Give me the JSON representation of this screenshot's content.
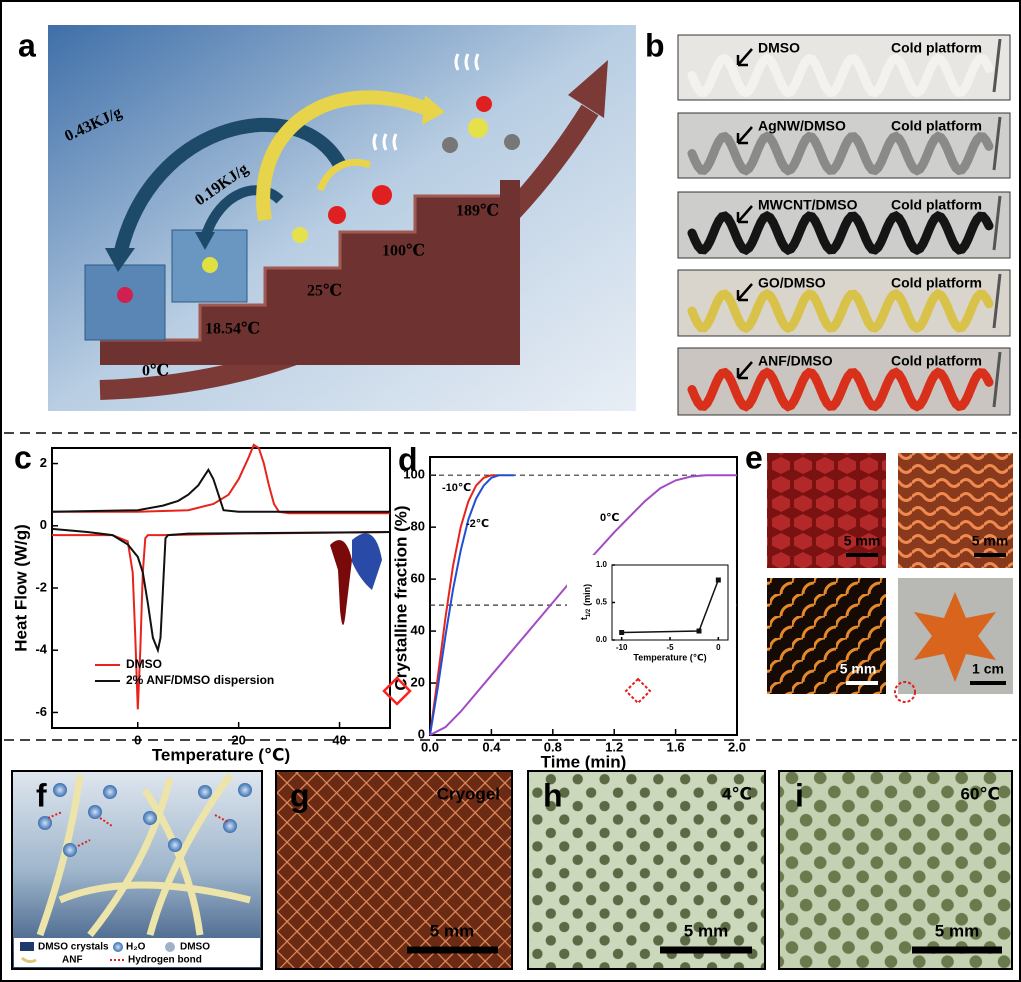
{
  "panel_labels": [
    "a",
    "b",
    "c",
    "d",
    "e",
    "f",
    "g",
    "h",
    "i"
  ],
  "panel_a": {
    "energies": [
      "0.43KJ/g",
      "0.19KJ/g"
    ],
    "temperatures": [
      "0℃",
      "18.54℃",
      "25℃",
      "100℃",
      "189℃"
    ]
  },
  "panel_b": {
    "strips": [
      {
        "label": "DMSO",
        "platform": "Cold platform"
      },
      {
        "label": "AgNW/DMSO",
        "platform": "Cold platform"
      },
      {
        "label": "MWCNT/DMSO",
        "platform": "Cold platform"
      },
      {
        "label": "GO/DMSO",
        "platform": "Cold platform"
      },
      {
        "label": "ANF/DMSO",
        "platform": "Cold platform"
      }
    ]
  },
  "chart_data": [
    {
      "type": "line",
      "xlabel": "Temperature (℃)",
      "ylabel": "Heat Flow (W/g)",
      "xlim": [
        -17,
        50
      ],
      "ylim": [
        -6.5,
        2.5
      ],
      "xticks": [
        0,
        20,
        40
      ],
      "yticks": [
        2,
        0,
        -2,
        -4,
        -6
      ],
      "legend": "lower left",
      "series": [
        {
          "name": "DMSO",
          "color": "#e8231c",
          "x": [
            -17,
            0,
            10,
            15,
            18,
            20,
            22,
            23,
            24,
            25,
            26,
            27,
            28,
            30,
            40,
            50,
            null,
            -17,
            -5,
            -2,
            -1,
            -0.5,
            0,
            0.5,
            1,
            1.5,
            2,
            5,
            20,
            50
          ],
          "values": [
            0.45,
            0.45,
            0.5,
            0.7,
            1.0,
            1.5,
            2.2,
            2.6,
            2.5,
            2.0,
            1.3,
            0.7,
            0.45,
            0.4,
            0.4,
            0.4,
            null,
            -0.3,
            -0.3,
            -0.5,
            -1.5,
            -3.5,
            -5.9,
            -4,
            -1.5,
            -0.4,
            -0.3,
            -0.3,
            -0.25,
            -0.2
          ]
        },
        {
          "name": "2% ANF/DMSO dispersion",
          "color": "#111111",
          "x": [
            -17,
            0,
            5,
            8,
            10,
            12,
            13,
            14,
            15,
            16,
            17,
            20,
            30,
            50,
            null,
            -17,
            -10,
            -5,
            -2,
            0,
            1,
            2,
            3,
            4,
            4.5,
            5,
            5.5,
            6,
            10,
            50
          ],
          "values": [
            0.45,
            0.5,
            0.65,
            0.8,
            1.0,
            1.3,
            1.55,
            1.8,
            1.5,
            1.0,
            0.5,
            0.45,
            0.45,
            0.45,
            null,
            -0.1,
            -0.2,
            -0.3,
            -0.6,
            -1.0,
            -1.5,
            -2.5,
            -3.6,
            -4.0,
            -3.6,
            -2,
            -0.4,
            -0.3,
            -0.25,
            -0.2
          ]
        }
      ]
    },
    {
      "type": "line",
      "xlabel": "Time (min)",
      "ylabel": "Crystalline fraction (%)",
      "xlim": [
        0,
        2.0
      ],
      "ylim": [
        0,
        107
      ],
      "xticks": [
        {
          "value": 0,
          "label": "0.0"
        },
        0.4,
        0.8,
        1.2,
        1.6,
        {
          "value": 2,
          "label": "2.0"
        }
      ],
      "yticks": [
        0,
        20,
        40,
        60,
        80,
        100
      ],
      "hlines": [
        100,
        50
      ],
      "series": [
        {
          "name": "-10℃",
          "color": "#e8231c",
          "x": [
            0,
            0.05,
            0.1,
            0.15,
            0.2,
            0.25,
            0.3,
            0.35,
            0.4,
            0.45
          ],
          "values": [
            0,
            22,
            45,
            65,
            80,
            90,
            96,
            99,
            100,
            100
          ]
        },
        {
          "name": "-2℃",
          "color": "#1f4fd6",
          "x": [
            0,
            0.05,
            0.1,
            0.15,
            0.2,
            0.25,
            0.3,
            0.35,
            0.4,
            0.45,
            0.5,
            0.55
          ],
          "values": [
            0,
            18,
            38,
            56,
            71,
            83,
            91,
            96,
            99,
            100,
            100,
            100
          ]
        },
        {
          "name": "0℃",
          "color": "#a24bc4",
          "x": [
            0,
            0.1,
            0.2,
            0.4,
            0.6,
            0.8,
            1.0,
            1.2,
            1.4,
            1.5,
            1.6,
            1.7,
            1.8,
            2.0
          ],
          "values": [
            0,
            3,
            9,
            23,
            37,
            51,
            65,
            78,
            90,
            95,
            98,
            99.5,
            100,
            100
          ]
        }
      ],
      "inset": {
        "type": "line",
        "xlabel": "Temperature (℃)",
        "ylabel_main": "t",
        "ylabel_sub": "1/2",
        "ylabel_unit": "(min)",
        "xlim": [
          -11,
          1
        ],
        "ylim": [
          0,
          1.0
        ],
        "xticks": [
          -10,
          -5,
          0
        ],
        "yticks": [
          {
            "value": 0,
            "label": "0.0"
          },
          0.5,
          {
            "value": 1,
            "label": "1.0"
          }
        ],
        "series": [
          {
            "color": "#111111",
            "x": [
              -10,
              -2,
              0
            ],
            "values": [
              0.1,
              0.12,
              0.8
            ]
          }
        ]
      }
    }
  ],
  "panel_e": {
    "scale_bars": [
      "5 mm",
      "5 mm",
      "5 mm",
      "1 cm"
    ]
  },
  "panel_f": {
    "legend": [
      "DMSO crystals",
      "H₂O",
      "DMSO",
      "ANF",
      "Hydrogen bond"
    ]
  },
  "panel_g": {
    "label": "Cryogel",
    "scale_bar": "5 mm"
  },
  "panel_h": {
    "label": "4℃",
    "scale_bar": "5 mm"
  },
  "panel_i": {
    "label": "60℃",
    "scale_bar": "5 mm"
  }
}
